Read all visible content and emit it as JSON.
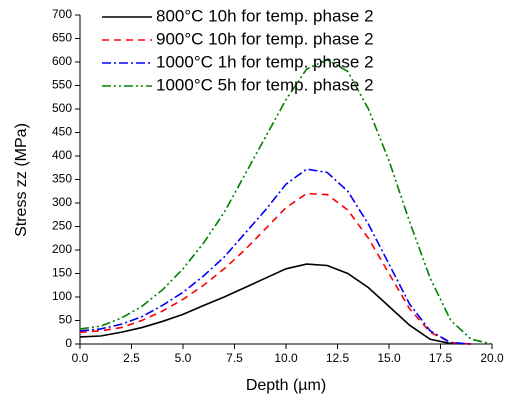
{
  "chart_data": {
    "type": "line",
    "xlabel": "Depth (µm)",
    "ylabel": "Stress zz (MPa)",
    "x": [
      0,
      1,
      2,
      3,
      4,
      5,
      6,
      7,
      8,
      9,
      10,
      11,
      12,
      13,
      14,
      15,
      16,
      17,
      18,
      19,
      20
    ],
    "series": [
      {
        "name": "800°C 10h for temp. phase 2",
        "color": "#000000",
        "dash": "none",
        "values": [
          15,
          17,
          25,
          35,
          48,
          63,
          82,
          100,
          120,
          140,
          160,
          170,
          167,
          150,
          120,
          80,
          40,
          10,
          1,
          0,
          null
        ]
      },
      {
        "name": "900°C 10h for temp. phase 2",
        "color": "#ff0000",
        "dash": "7,5",
        "values": [
          25,
          28,
          35,
          50,
          70,
          95,
          125,
          160,
          200,
          245,
          290,
          320,
          318,
          285,
          225,
          150,
          75,
          25,
          3,
          0,
          null
        ]
      },
      {
        "name": "1000°C 1h for temp. phase 2",
        "color": "#0000ff",
        "dash": "9,3,2,3",
        "values": [
          28,
          32,
          42,
          58,
          82,
          110,
          145,
          185,
          235,
          285,
          340,
          372,
          365,
          325,
          255,
          170,
          85,
          28,
          3,
          0,
          null
        ]
      },
      {
        "name": "1000°C 5h for temp. phase 2",
        "color": "#008000",
        "dash": "9,3,2,3,2,3",
        "values": [
          32,
          38,
          55,
          80,
          115,
          160,
          215,
          280,
          360,
          440,
          520,
          585,
          605,
          580,
          500,
          390,
          260,
          140,
          50,
          10,
          0
        ]
      }
    ],
    "xlim": [
      0,
      20
    ],
    "xticks": [
      {
        "value": 0,
        "label": "0.0"
      },
      2.5,
      {
        "value": 5,
        "label": "5.0"
      },
      7.5,
      {
        "value": 10,
        "label": "10.0"
      },
      12.5,
      {
        "value": 15,
        "label": "15.0"
      },
      17.5,
      {
        "value": 20,
        "label": "20.0"
      }
    ],
    "ylim": [
      0,
      700
    ],
    "yticks": [
      0,
      50,
      100,
      150,
      200,
      250,
      300,
      350,
      400,
      450,
      500,
      550,
      600,
      650,
      700
    ],
    "grid": false,
    "legend": "top-left"
  }
}
